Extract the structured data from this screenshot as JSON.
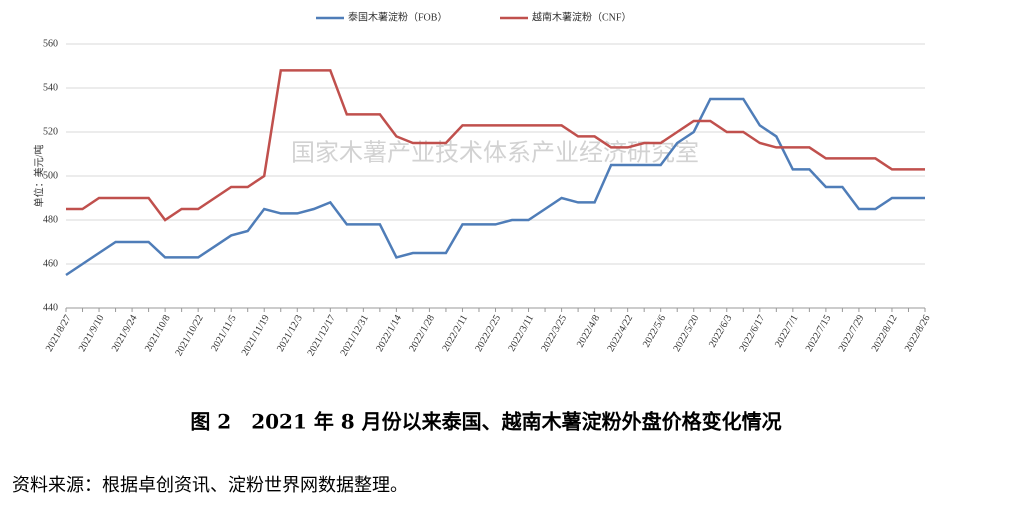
{
  "chart_data": {
    "type": "line",
    "legend": "top",
    "ylabel": "单位：美元/吨",
    "watermark": "国家木薯产业技术体系产业经济研究室",
    "caption": "图 2　2021 年 8 月份以来泰国、越南木薯淀粉外盘价格变化情况",
    "source": "资料来源：根据卓创资讯、淀粉世界网数据整理。",
    "categories": [
      "2021/8/27",
      null,
      "2021/9/10",
      null,
      "2021/9/24",
      null,
      "2021/10/8",
      null,
      "2021/10/22",
      null,
      "2021/11/5",
      null,
      "2021/11/19",
      null,
      "2021/12/3",
      null,
      "2021/12/17",
      null,
      "2021/12/31",
      null,
      "2022/1/14",
      null,
      "2022/1/28",
      null,
      "2022/2/11",
      null,
      "2022/2/25",
      null,
      "2022/3/11",
      null,
      "2022/3/25",
      null,
      "2022/4/8",
      null,
      "2022/4/22",
      null,
      "2022/5/6",
      null,
      "2022/5/20",
      null,
      "2022/6/3",
      null,
      "2022/6/17",
      null,
      "2022/7/1",
      null,
      "2022/7/15",
      null,
      "2022/7/29",
      null,
      "2022/8/12",
      null,
      "2022/8/26"
    ],
    "series": [
      {
        "name": "泰国木薯淀粉（FOB）",
        "color": "#4f7db8",
        "values": [
          455,
          460,
          465,
          470,
          470,
          470,
          463,
          463,
          463,
          468,
          473,
          475,
          485,
          483,
          483,
          485,
          488,
          478,
          478,
          478,
          463,
          465,
          465,
          465,
          478,
          478,
          478,
          480,
          480,
          485,
          490,
          488,
          488,
          505,
          505,
          505,
          505,
          515,
          520,
          535,
          535,
          535,
          523,
          518,
          503,
          503,
          495,
          495,
          485,
          485,
          490,
          490,
          490
        ]
      },
      {
        "name": "越南木薯淀粉（CNF）",
        "color": "#c0504d",
        "values": [
          485,
          485,
          490,
          490,
          490,
          490,
          480,
          485,
          485,
          490,
          495,
          495,
          500,
          548,
          548,
          548,
          548,
          528,
          528,
          528,
          518,
          515,
          515,
          515,
          523,
          523,
          523,
          523,
          523,
          523,
          523,
          518,
          518,
          513,
          513,
          515,
          515,
          520,
          525,
          525,
          520,
          520,
          515,
          513,
          513,
          513,
          508,
          508,
          508,
          508,
          503,
          503,
          503
        ]
      }
    ],
    "ylim": [
      440,
      560
    ],
    "yticks": [
      440,
      460,
      480,
      500,
      520,
      540,
      560
    ],
    "grid": true
  }
}
